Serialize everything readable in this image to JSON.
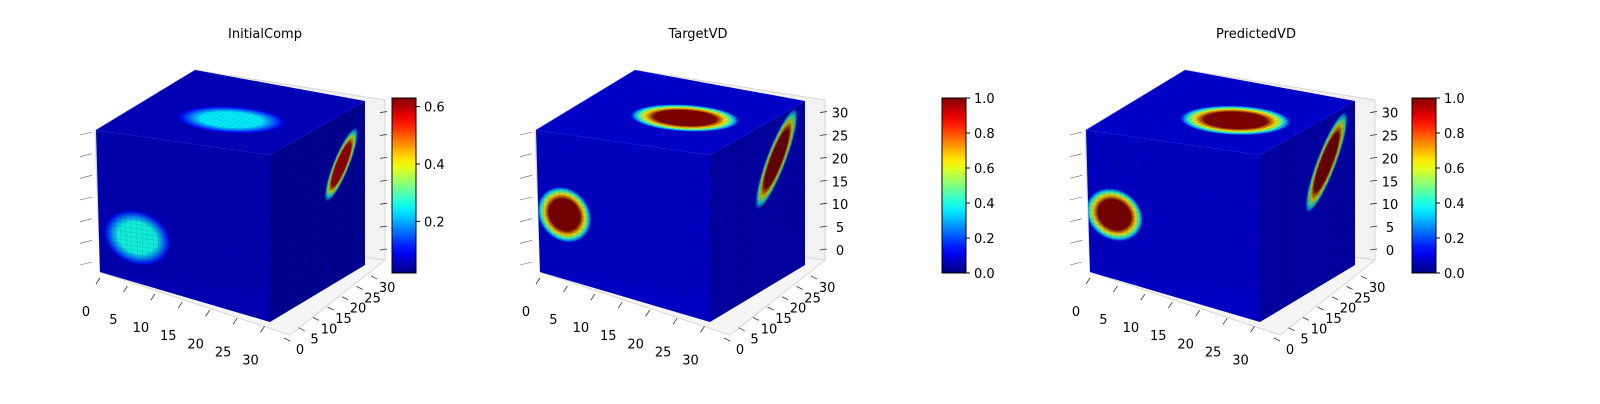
{
  "chart_data": [
    {
      "type": "heatmap",
      "title": "InitialComp",
      "axes": {
        "x": {
          "range": [
            0,
            31
          ],
          "ticks": [
            0,
            5,
            10,
            15,
            20,
            25,
            30
          ]
        },
        "y": {
          "range": [
            0,
            31
          ],
          "ticks": [
            0,
            5,
            10,
            15,
            20,
            25,
            30
          ]
        },
        "z": {
          "range": [
            0,
            31
          ],
          "ticks": [
            0,
            5,
            10,
            15,
            20,
            25,
            30
          ],
          "tick_labels_shown": false
        }
      },
      "colormap": "jet",
      "colorbar": {
        "range": [
          0.02,
          0.63
        ],
        "ticks": [
          0.2,
          0.4,
          0.6
        ],
        "tick_labels": [
          "0.2",
          "0.4",
          "0.6"
        ]
      },
      "background_value": 0.06,
      "blobs": [
        {
          "face": "top",
          "center": [
            0.55,
            0.4
          ],
          "radius": [
            0.3,
            0.2
          ],
          "value": 0.24
        },
        {
          "face": "front",
          "center": [
            0.22,
            0.72
          ],
          "radius": [
            0.2,
            0.2
          ],
          "value": 0.26
        },
        {
          "face": "right",
          "center": [
            0.75,
            0.3
          ],
          "radius": [
            0.24,
            0.09
          ],
          "value": 0.6,
          "angle": -45
        }
      ]
    },
    {
      "type": "heatmap",
      "title": "TargetVD",
      "axes": {
        "x": {
          "range": [
            0,
            31
          ],
          "ticks": [
            0,
            5,
            10,
            15,
            20,
            25,
            30
          ]
        },
        "y": {
          "range": [
            0,
            31
          ],
          "ticks": [
            0,
            5,
            10,
            15,
            20,
            25,
            30
          ]
        },
        "z": {
          "range": [
            0,
            31
          ],
          "ticks": [
            0,
            5,
            10,
            15,
            20,
            25,
            30
          ],
          "tick_labels_shown": true
        }
      },
      "colormap": "jet",
      "colorbar": {
        "range": [
          0,
          1
        ],
        "ticks": [
          0,
          0.2,
          0.4,
          0.6,
          0.8,
          1
        ],
        "tick_labels": [
          "0.0",
          "0.2",
          "0.4",
          "0.6",
          "0.8",
          "1.0"
        ]
      },
      "background_value": 0.08,
      "blobs": [
        {
          "face": "top",
          "center": [
            0.6,
            0.45
          ],
          "radius": [
            0.3,
            0.2
          ],
          "value": 1.0
        },
        {
          "face": "front",
          "center": [
            0.15,
            0.57
          ],
          "radius": [
            0.16,
            0.2
          ],
          "value": 1.0
        },
        {
          "face": "right",
          "center": [
            0.7,
            0.25
          ],
          "radius": [
            0.32,
            0.11
          ],
          "value": 1.0,
          "angle": -48
        }
      ]
    },
    {
      "type": "heatmap",
      "title": "PredictedVD",
      "axes": {
        "x": {
          "range": [
            0,
            31
          ],
          "ticks": [
            0,
            5,
            10,
            15,
            20,
            25,
            30
          ]
        },
        "y": {
          "range": [
            0,
            31
          ],
          "ticks": [
            0,
            5,
            10,
            15,
            20,
            25,
            30
          ]
        },
        "z": {
          "range": [
            0,
            31
          ],
          "ticks": [
            0,
            5,
            10,
            15,
            20,
            25,
            30
          ],
          "tick_labels_shown": true
        }
      },
      "colormap": "jet",
      "colorbar": {
        "range": [
          0,
          1
        ],
        "ticks": [
          0,
          0.2,
          0.4,
          0.6,
          0.8,
          1
        ],
        "tick_labels": [
          "0.0",
          "0.2",
          "0.4",
          "0.6",
          "0.8",
          "1.0"
        ]
      },
      "background_value": 0.08,
      "blobs": [
        {
          "face": "top",
          "center": [
            0.62,
            0.42
          ],
          "radius": [
            0.3,
            0.22
          ],
          "value": 1.0
        },
        {
          "face": "front",
          "center": [
            0.15,
            0.57
          ],
          "radius": [
            0.17,
            0.19
          ],
          "value": 1.0
        },
        {
          "face": "right",
          "center": [
            0.7,
            0.27
          ],
          "radius": [
            0.32,
            0.11
          ],
          "value": 1.0,
          "angle": -48
        }
      ]
    }
  ]
}
